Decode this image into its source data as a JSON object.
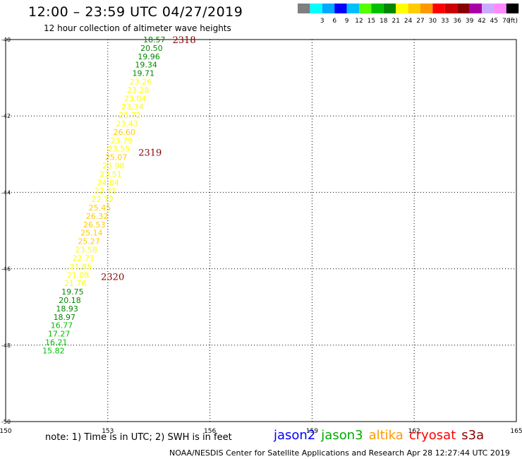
{
  "header": {
    "title": "12:00 – 23:59 UTC 04/27/2019",
    "subtitle": "12 hour collection of altimeter wave heights"
  },
  "legend": {
    "unit": "(ft)",
    "entries": [
      {
        "label": "",
        "color": "#7f7f7f"
      },
      {
        "label": "3",
        "color": "#00ffff"
      },
      {
        "label": "6",
        "color": "#00aaff"
      },
      {
        "label": "9",
        "color": "#0000ff"
      },
      {
        "label": "12",
        "color": "#00c0ff"
      },
      {
        "label": "15",
        "color": "#55ff00"
      },
      {
        "label": "18",
        "color": "#00c000"
      },
      {
        "label": "21",
        "color": "#008800"
      },
      {
        "label": "24",
        "color": "#ffff00"
      },
      {
        "label": "27",
        "color": "#ffcc00"
      },
      {
        "label": "30",
        "color": "#ff9900"
      },
      {
        "label": "33",
        "color": "#ff0000"
      },
      {
        "label": "36",
        "color": "#cc0000"
      },
      {
        "label": "39",
        "color": "#880000"
      },
      {
        "label": "42",
        "color": "#aa00aa"
      },
      {
        "label": "45",
        "color": "#ccaaff"
      },
      {
        "label": "70",
        "color": "#ff88ff"
      },
      {
        "label": "",
        "color": "#000000"
      }
    ]
  },
  "chart_data": {
    "type": "scatter",
    "title": "12:00 – 23:59 UTC 04/27/2019",
    "subtitle": "12 hour collection of altimeter wave heights",
    "xlim": [
      150,
      165
    ],
    "ylim": [
      -50,
      -40
    ],
    "x_ticks": [
      "150",
      "153",
      "156",
      "159",
      "162",
      "165"
    ],
    "y_ticks": [
      "-40",
      "-42",
      "-44",
      "-46",
      "-48",
      "-50"
    ],
    "grid": true,
    "points": [
      {
        "x": 154.04,
        "y": -40.0,
        "v": "18.57",
        "c": "#008800"
      },
      {
        "x": 153.96,
        "y": -40.22,
        "v": "20.50",
        "c": "#008800"
      },
      {
        "x": 153.88,
        "y": -40.44,
        "v": "19.96",
        "c": "#008800"
      },
      {
        "x": 153.8,
        "y": -40.66,
        "v": "19.34",
        "c": "#008800"
      },
      {
        "x": 153.72,
        "y": -40.88,
        "v": "19.71",
        "c": "#008800"
      },
      {
        "x": 153.64,
        "y": -41.1,
        "v": "23.26",
        "c": "#ffff00"
      },
      {
        "x": 153.56,
        "y": -41.32,
        "v": "23.28",
        "c": "#ffff00"
      },
      {
        "x": 153.48,
        "y": -41.54,
        "v": "23.04",
        "c": "#ffff00"
      },
      {
        "x": 153.4,
        "y": -41.76,
        "v": "23.34",
        "c": "#ffff00"
      },
      {
        "x": 153.32,
        "y": -41.98,
        "v": "23.72",
        "c": "#ffff00"
      },
      {
        "x": 153.24,
        "y": -42.2,
        "v": "23.43",
        "c": "#ffff00"
      },
      {
        "x": 153.16,
        "y": -42.42,
        "v": "26.60",
        "c": "#ffcc00"
      },
      {
        "x": 153.08,
        "y": -42.64,
        "v": "23.79",
        "c": "#ffff00"
      },
      {
        "x": 153.0,
        "y": -42.86,
        "v": "23.55",
        "c": "#ffff00"
      },
      {
        "x": 152.92,
        "y": -43.08,
        "v": "25.07",
        "c": "#ffcc00"
      },
      {
        "x": 152.84,
        "y": -43.3,
        "v": "23.98",
        "c": "#ffff00"
      },
      {
        "x": 152.76,
        "y": -43.52,
        "v": "23.51",
        "c": "#ffff00"
      },
      {
        "x": 152.68,
        "y": -43.74,
        "v": "24.04",
        "c": "#ffff00"
      },
      {
        "x": 152.6,
        "y": -43.96,
        "v": "22.41",
        "c": "#ffff00"
      },
      {
        "x": 152.52,
        "y": -44.18,
        "v": "22.72",
        "c": "#ffff00"
      },
      {
        "x": 152.44,
        "y": -44.4,
        "v": "25.45",
        "c": "#ffcc00"
      },
      {
        "x": 152.36,
        "y": -44.62,
        "v": "26.32",
        "c": "#ffcc00"
      },
      {
        "x": 152.28,
        "y": -44.84,
        "v": "26.53",
        "c": "#ffcc00"
      },
      {
        "x": 152.2,
        "y": -45.06,
        "v": "25.14",
        "c": "#ffcc00"
      },
      {
        "x": 152.12,
        "y": -45.28,
        "v": "25.27",
        "c": "#ffcc00"
      },
      {
        "x": 152.04,
        "y": -45.5,
        "v": "23.58",
        "c": "#ffff00"
      },
      {
        "x": 151.96,
        "y": -45.72,
        "v": "22.71",
        "c": "#ffff00"
      },
      {
        "x": 151.88,
        "y": -45.94,
        "v": "21.85",
        "c": "#ffff00"
      },
      {
        "x": 151.8,
        "y": -46.16,
        "v": "21.08",
        "c": "#ffff00"
      },
      {
        "x": 151.72,
        "y": -46.38,
        "v": "21.76",
        "c": "#ffff00"
      },
      {
        "x": 151.64,
        "y": -46.6,
        "v": "19.75",
        "c": "#008800"
      },
      {
        "x": 151.56,
        "y": -46.82,
        "v": "20.18",
        "c": "#008800"
      },
      {
        "x": 151.48,
        "y": -47.04,
        "v": "18.93",
        "c": "#008800"
      },
      {
        "x": 151.4,
        "y": -47.26,
        "v": "18.97",
        "c": "#008800"
      },
      {
        "x": 151.32,
        "y": -47.48,
        "v": "16.77",
        "c": "#00c000"
      },
      {
        "x": 151.24,
        "y": -47.7,
        "v": "17.27",
        "c": "#00c000"
      },
      {
        "x": 151.16,
        "y": -47.92,
        "v": "16.21",
        "c": "#00c000"
      },
      {
        "x": 151.08,
        "y": -48.14,
        "v": "15.82",
        "c": "#00c000"
      }
    ],
    "time_labels": [
      {
        "x": 154.9,
        "y": -40.0,
        "text": "2318",
        "c": "#880000"
      },
      {
        "x": 153.9,
        "y": -42.95,
        "text": "2319",
        "c": "#880000"
      },
      {
        "x": 152.8,
        "y": -46.2,
        "text": "2320",
        "c": "#880000"
      }
    ]
  },
  "footer": {
    "note": "note:  1) Time is in UTC;  2) SWH is in feet",
    "credit": "NOAA/NESDIS Center for Satellite Applications and Research     Apr 28 12:27:44 UTC 2019",
    "satellites": [
      {
        "name": "jason2",
        "color": "#0000ff"
      },
      {
        "name": "jason3",
        "color": "#00aa00"
      },
      {
        "name": "altika",
        "color": "#ff9900"
      },
      {
        "name": "cryosat",
        "color": "#ff0000"
      },
      {
        "name": "s3a",
        "color": "#880000"
      }
    ]
  }
}
